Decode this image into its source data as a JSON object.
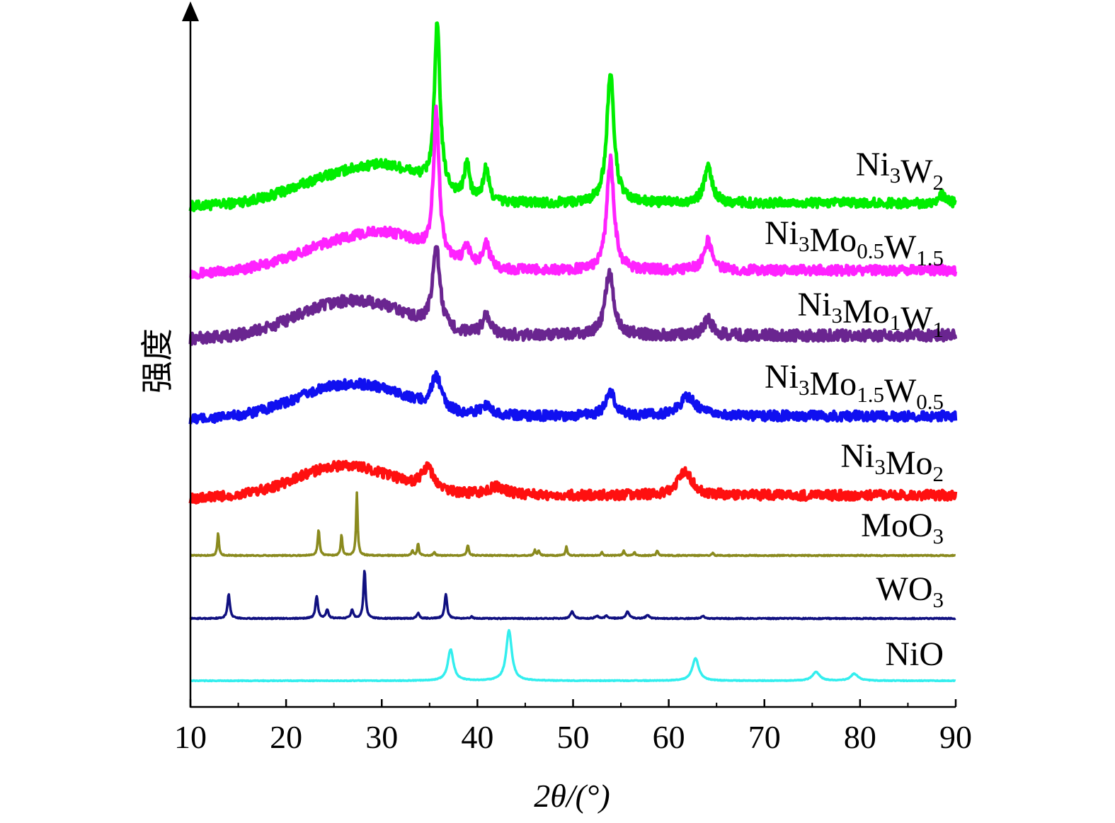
{
  "chart_data": {
    "type": "line",
    "title": "",
    "xlabel": "2θ/(°)",
    "ylabel": "强度",
    "xlim": [
      10,
      90
    ],
    "xticks": [
      "10",
      "20",
      "30",
      "40",
      "50",
      "60",
      "70",
      "80",
      "90"
    ],
    "grid": false,
    "legend": "inline labels at right end of each trace",
    "colors": {
      "Ni3W2": "#00ee00",
      "Ni3Mo0.5W1.5": "#ff22ff",
      "Ni3Mo1W1": "#6a2590",
      "Ni3Mo1.5W0.5": "#1010f0",
      "Ni3Mo2": "#ff1010",
      "MoO3": "#8a8a1e",
      "WO3": "#101080",
      "NiO": "#33eeee"
    },
    "series": [
      {
        "name": "Ni3W2",
        "label_parts": [
          [
            "Ni",
            ""
          ],
          [
            "3",
            "sub"
          ],
          [
            "W",
            ""
          ],
          [
            "2",
            "sub"
          ]
        ],
        "baseline": 0.0,
        "noise": 0.03,
        "hump": [
          [
            24,
            0.12,
            4
          ],
          [
            31,
            0.2,
            4
          ]
        ],
        "peaks": [
          [
            35.8,
            1.0,
            0.35
          ],
          [
            38.9,
            0.22,
            0.3
          ],
          [
            40.9,
            0.2,
            0.35
          ],
          [
            53.9,
            0.8,
            0.45
          ],
          [
            64.1,
            0.22,
            0.5
          ],
          [
            88.5,
            0.05,
            0.4
          ]
        ]
      },
      {
        "name": "Ni3Mo0.5W1.5",
        "label_parts": [
          [
            "Ni",
            ""
          ],
          [
            "3",
            "sub"
          ],
          [
            "Mo",
            ""
          ],
          [
            "0.5",
            "sub"
          ],
          [
            "W",
            ""
          ],
          [
            "1.5",
            "sub"
          ]
        ],
        "baseline": 0.0,
        "noise": 0.03,
        "hump": [
          [
            24,
            0.12,
            4
          ],
          [
            31,
            0.2,
            4
          ]
        ],
        "peaks": [
          [
            35.7,
            0.88,
            0.35
          ],
          [
            38.9,
            0.1,
            0.5
          ],
          [
            40.9,
            0.15,
            0.45
          ],
          [
            53.9,
            0.68,
            0.45
          ],
          [
            64.1,
            0.18,
            0.5
          ]
        ]
      },
      {
        "name": "Ni3Mo1W1",
        "label_parts": [
          [
            "Ni",
            ""
          ],
          [
            "3",
            "sub"
          ],
          [
            "Mo",
            ""
          ],
          [
            "1",
            "sub"
          ],
          [
            "W",
            ""
          ],
          [
            "1",
            "sub"
          ]
        ],
        "baseline": 0.0,
        "noise": 0.035,
        "hump": [
          [
            24,
            0.14,
            4
          ],
          [
            30,
            0.14,
            4
          ]
        ],
        "peaks": [
          [
            35.7,
            0.5,
            0.45
          ],
          [
            40.9,
            0.12,
            0.5
          ],
          [
            53.8,
            0.38,
            0.55
          ],
          [
            64.1,
            0.1,
            0.55
          ]
        ]
      },
      {
        "name": "Ni3Mo1.5W0.5",
        "label_parts": [
          [
            "Ni",
            ""
          ],
          [
            "3",
            "sub"
          ],
          [
            "Mo",
            ""
          ],
          [
            "1.5",
            "sub"
          ],
          [
            "W",
            ""
          ],
          [
            "0.5",
            "sub"
          ]
        ],
        "baseline": 0.0,
        "noise": 0.03,
        "hump": [
          [
            24,
            0.13,
            4
          ],
          [
            30,
            0.13,
            4
          ]
        ],
        "peaks": [
          [
            35.7,
            0.2,
            0.6
          ],
          [
            40.9,
            0.06,
            0.8
          ],
          [
            53.9,
            0.14,
            0.6
          ],
          [
            62,
            0.12,
            1.0
          ]
        ]
      },
      {
        "name": "Ni3Mo2",
        "label_parts": [
          [
            "Ni",
            ""
          ],
          [
            "3",
            "sub"
          ],
          [
            "Mo",
            ""
          ],
          [
            "2",
            "sub"
          ]
        ],
        "baseline": 0.0,
        "noise": 0.03,
        "hump": [
          [
            24,
            0.12,
            4
          ],
          [
            29,
            0.1,
            4
          ]
        ],
        "peaks": [
          [
            34.8,
            0.13,
            0.8
          ],
          [
            42,
            0.05,
            1.2
          ],
          [
            61.7,
            0.15,
            0.9
          ]
        ]
      },
      {
        "name": "MoO3",
        "label_parts": [
          [
            "MoO",
            ""
          ],
          [
            "3",
            "sub"
          ]
        ],
        "baseline": 0.0,
        "noise": 0.003,
        "hump": [],
        "peaks": [
          [
            12.9,
            0.13,
            0.1
          ],
          [
            23.4,
            0.15,
            0.12
          ],
          [
            25.8,
            0.12,
            0.1
          ],
          [
            27.4,
            0.36,
            0.1
          ],
          [
            33.2,
            0.03,
            0.1
          ],
          [
            33.8,
            0.07,
            0.1
          ],
          [
            35.5,
            0.02,
            0.1
          ],
          [
            39.0,
            0.06,
            0.12
          ],
          [
            46.0,
            0.03,
            0.1
          ],
          [
            46.4,
            0.03,
            0.1
          ],
          [
            49.3,
            0.05,
            0.1
          ],
          [
            53.0,
            0.02,
            0.1
          ],
          [
            55.3,
            0.03,
            0.1
          ],
          [
            56.4,
            0.02,
            0.1
          ],
          [
            58.8,
            0.03,
            0.1
          ],
          [
            64.6,
            0.015,
            0.1
          ]
        ]
      },
      {
        "name": "WO3",
        "label_parts": [
          [
            "WO",
            ""
          ],
          [
            "3",
            "sub"
          ]
        ],
        "baseline": 0.0,
        "noise": 0.003,
        "hump": [],
        "peaks": [
          [
            14.0,
            0.14,
            0.15
          ],
          [
            23.2,
            0.13,
            0.15
          ],
          [
            24.3,
            0.05,
            0.15
          ],
          [
            26.9,
            0.05,
            0.15
          ],
          [
            28.2,
            0.28,
            0.13
          ],
          [
            33.8,
            0.03,
            0.15
          ],
          [
            36.7,
            0.14,
            0.15
          ],
          [
            39.4,
            0.01,
            0.15
          ],
          [
            49.9,
            0.04,
            0.2
          ],
          [
            52.5,
            0.015,
            0.2
          ],
          [
            53.5,
            0.015,
            0.2
          ],
          [
            55.7,
            0.04,
            0.2
          ],
          [
            57.8,
            0.02,
            0.2
          ],
          [
            63.6,
            0.015,
            0.2
          ]
        ]
      },
      {
        "name": "NiO",
        "label_parts": [
          [
            "NiO",
            ""
          ]
        ],
        "baseline": 0.0,
        "noise": 0.002,
        "hump": [],
        "peaks": [
          [
            37.2,
            0.18,
            0.35
          ],
          [
            43.3,
            0.29,
            0.35
          ],
          [
            62.8,
            0.13,
            0.4
          ],
          [
            75.4,
            0.05,
            0.45
          ],
          [
            79.4,
            0.04,
            0.45
          ]
        ]
      }
    ]
  }
}
